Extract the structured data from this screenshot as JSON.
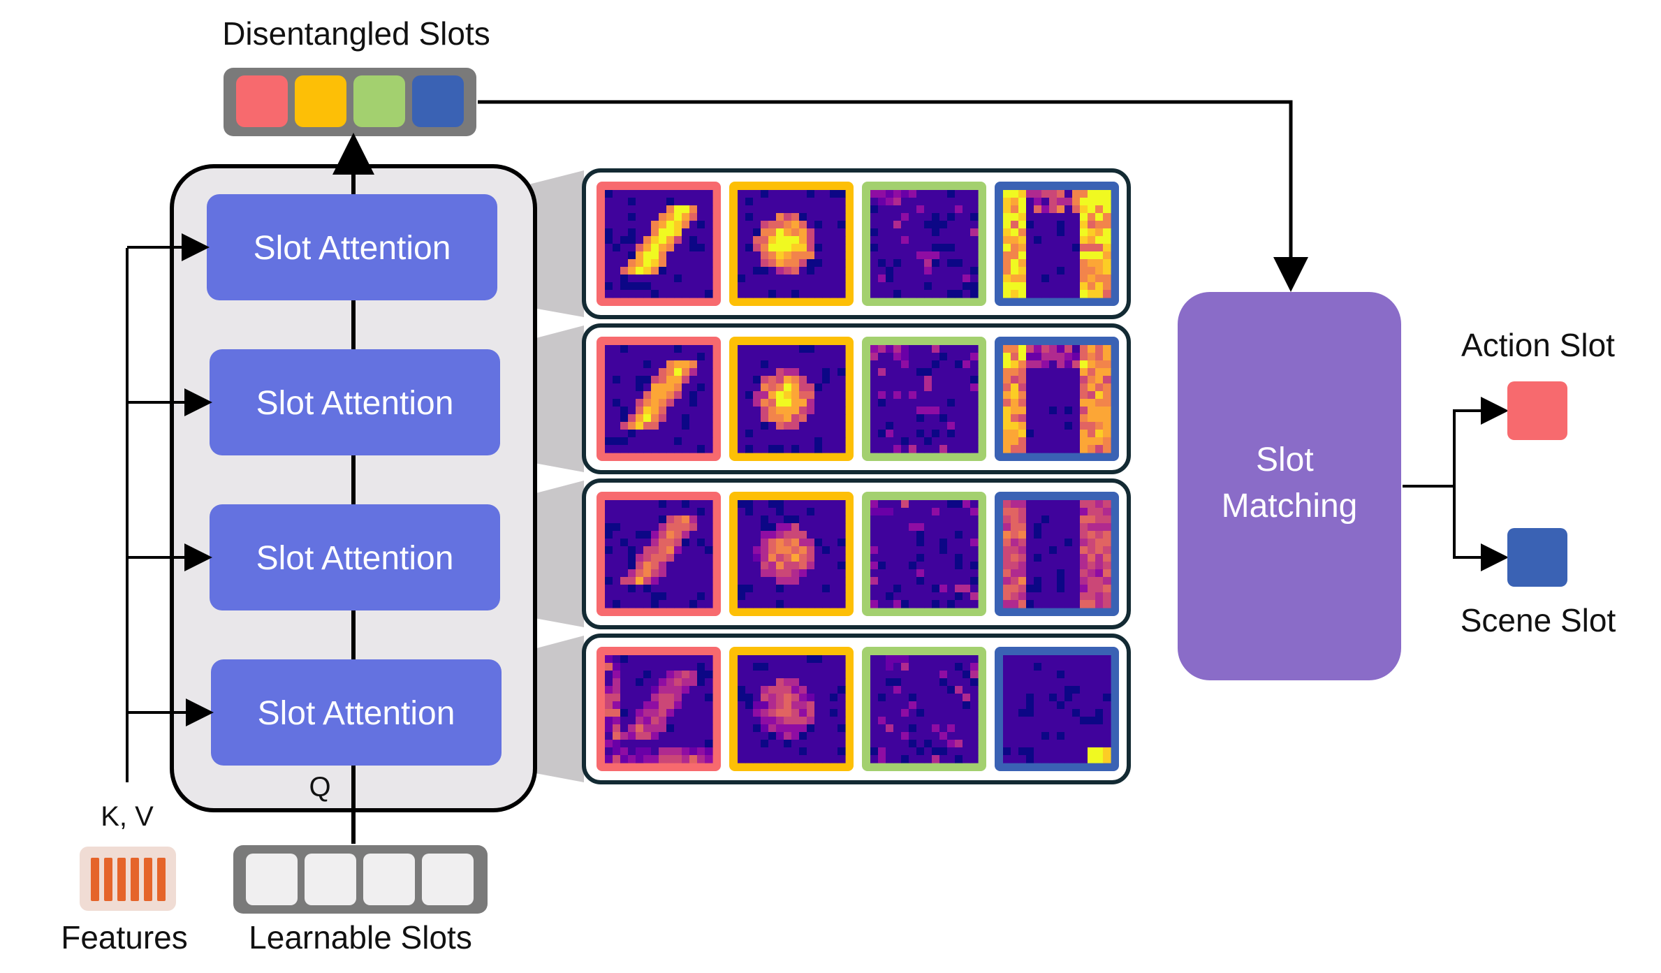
{
  "title": "Disentangled Slots",
  "slot_colors": {
    "red": "#F76A6E",
    "yellow": "#FDBF06",
    "green": "#A3D06F",
    "blue": "#3A62B4"
  },
  "slot_attention_label": "Slot Attention",
  "slot_attention_color": "#6472E0",
  "slot_matching_label": "Slot Matching",
  "slot_matching_color": "#8A6CC8",
  "query_label": "Q",
  "kv_label": "K, V",
  "features_label": "Features",
  "feature_bar_color": "#E5642A",
  "learnable_slots_label": "Learnable Slots",
  "action_slot_label": "Action Slot",
  "scene_slot_label": "Scene Slot",
  "attention_rows": 4,
  "attention_cols": 4
}
